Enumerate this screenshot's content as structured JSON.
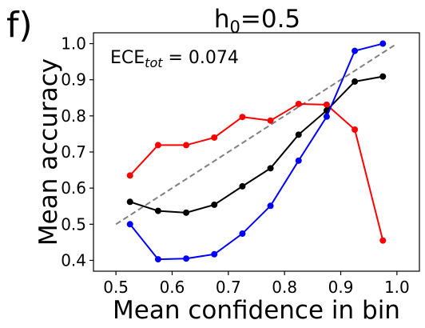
{
  "panel_label": "f)",
  "chart_data": {
    "type": "line",
    "title_base": "h",
    "title_sub": "0",
    "title_rest": "=0.5",
    "xlabel": "Mean confidence in bin",
    "ylabel": "Mean accuracy",
    "xlim": [
      0.46,
      1.04
    ],
    "ylim": [
      0.37,
      1.03
    ],
    "xticks": [
      0.5,
      0.6,
      0.7,
      0.8,
      0.9,
      1.0
    ],
    "xtick_labels": [
      "0.5",
      "0.6",
      "0.7",
      "0.8",
      "0.9",
      "1.0"
    ],
    "yticks": [
      0.4,
      0.5,
      0.6,
      0.7,
      0.8,
      0.9,
      1.0
    ],
    "ytick_labels": [
      "0.4",
      "0.5",
      "0.6",
      "0.7",
      "0.8",
      "0.9",
      "1.0"
    ],
    "grid": false,
    "annotation": {
      "base": "ECE",
      "sub": "tot",
      "rest": " = 0.074"
    },
    "diagonal": {
      "x": [
        0.5,
        1.0
      ],
      "y": [
        0.5,
        1.0
      ],
      "color": "#808080",
      "style": "dashed"
    },
    "x": [
      0.525,
      0.575,
      0.625,
      0.675,
      0.725,
      0.775,
      0.825,
      0.875,
      0.925,
      0.975
    ],
    "series": [
      {
        "color": "#ff0000",
        "values": [
          0.635,
          0.719,
          0.719,
          0.74,
          0.797,
          0.787,
          0.833,
          0.831,
          0.762,
          0.455
        ]
      },
      {
        "color": "#000000",
        "values": [
          0.562,
          0.537,
          0.532,
          0.554,
          0.605,
          0.655,
          0.748,
          0.815,
          0.895,
          0.909
        ]
      },
      {
        "color": "#0000ff",
        "values": [
          0.5,
          0.403,
          0.405,
          0.417,
          0.474,
          0.551,
          0.676,
          0.798,
          0.98,
          1.0
        ]
      }
    ]
  }
}
